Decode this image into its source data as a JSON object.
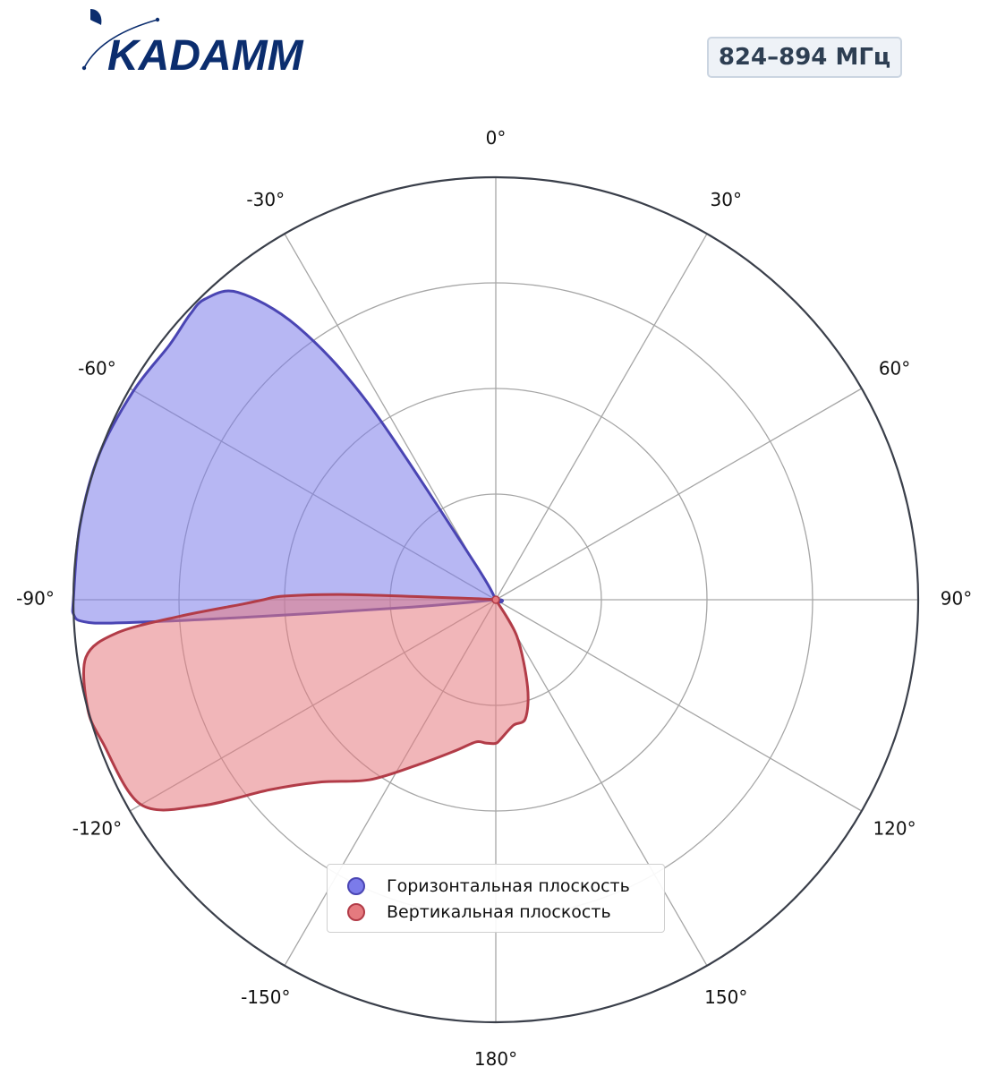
{
  "header": {
    "logo_text": "KADAMM",
    "band_label": "824–894 МГц"
  },
  "colors": {
    "logo": "#0b2d6e",
    "horizontal_fill": "#7b7bea",
    "horizontal_stroke": "#4a45b3",
    "vertical_fill": "#e57a7f",
    "vertical_stroke": "#b23c48",
    "grid": "#a6a6a6",
    "outer_ring": "#3a3f4a"
  },
  "chart_data": {
    "type": "polar-area",
    "angular_ticks": [
      {
        "angle": 0,
        "label": "0°"
      },
      {
        "angle": 30,
        "label": "30°"
      },
      {
        "angle": 60,
        "label": "60°"
      },
      {
        "angle": 90,
        "label": "90°"
      },
      {
        "angle": 120,
        "label": "120°"
      },
      {
        "angle": 150,
        "label": "150°"
      },
      {
        "angle": 180,
        "label": "180°"
      },
      {
        "angle": -150,
        "label": "-150°"
      },
      {
        "angle": -120,
        "label": "-120°"
      },
      {
        "angle": -90,
        "label": "-90°"
      },
      {
        "angle": -60,
        "label": "-60°"
      },
      {
        "angle": -30,
        "label": "-30°"
      }
    ],
    "radial_range": [
      0,
      1
    ],
    "radial_gridlines": [
      0.25,
      0.5,
      0.75,
      1.0
    ],
    "grid": true,
    "legend_position": "bottom-center",
    "series": [
      {
        "name": "Горизонтальная плоскость",
        "points": [
          {
            "angle": 0,
            "r": 0
          },
          {
            "angle": -30,
            "r": 0.1
          },
          {
            "angle": -33,
            "r": 0.55
          },
          {
            "angle": -36,
            "r": 0.8
          },
          {
            "angle": -40,
            "r": 0.95
          },
          {
            "angle": -44,
            "r": 0.99
          },
          {
            "angle": -47,
            "r": 0.99
          },
          {
            "angle": -52,
            "r": 0.98
          },
          {
            "angle": -60,
            "r": 0.99
          },
          {
            "angle": -70,
            "r": 1.0
          },
          {
            "angle": -80,
            "r": 1.0
          },
          {
            "angle": -90,
            "r": 1.0
          },
          {
            "angle": -92,
            "r": 1.0
          },
          {
            "angle": -93,
            "r": 0.98
          },
          {
            "angle": -93.5,
            "r": 0.9
          },
          {
            "angle": -94,
            "r": 0.6
          },
          {
            "angle": -95,
            "r": 0.2
          },
          {
            "angle": -97,
            "r": 0
          }
        ]
      },
      {
        "name": "Вертикальная плоскость",
        "points": [
          {
            "angle": -90,
            "r": 0
          },
          {
            "angle": -87,
            "r": 0.05
          },
          {
            "angle": -88,
            "r": 0.35
          },
          {
            "angle": -89,
            "r": 0.5
          },
          {
            "angle": -90,
            "r": 0.55
          },
          {
            "angle": -91,
            "r": 0.6
          },
          {
            "angle": -93,
            "r": 0.75
          },
          {
            "angle": -95,
            "r": 0.9
          },
          {
            "angle": -98,
            "r": 0.98
          },
          {
            "angle": -105,
            "r": 1.0
          },
          {
            "angle": -110,
            "r": 0.99
          },
          {
            "angle": -120,
            "r": 0.97
          },
          {
            "angle": -125,
            "r": 0.85
          },
          {
            "angle": -130,
            "r": 0.7
          },
          {
            "angle": -136,
            "r": 0.6
          },
          {
            "angle": -145,
            "r": 0.52
          },
          {
            "angle": -155,
            "r": 0.43
          },
          {
            "angle": -165,
            "r": 0.37
          },
          {
            "angle": -172,
            "r": 0.34
          },
          {
            "angle": -176,
            "r": 0.34
          },
          {
            "angle": -180,
            "r": 0.34
          },
          {
            "angle": 178,
            "r": 0.33
          },
          {
            "angle": 172,
            "r": 0.3
          },
          {
            "angle": 166,
            "r": 0.29
          },
          {
            "angle": 160,
            "r": 0.22
          },
          {
            "angle": 150,
            "r": 0.1
          },
          {
            "angle": 140,
            "r": 0
          }
        ]
      }
    ]
  }
}
